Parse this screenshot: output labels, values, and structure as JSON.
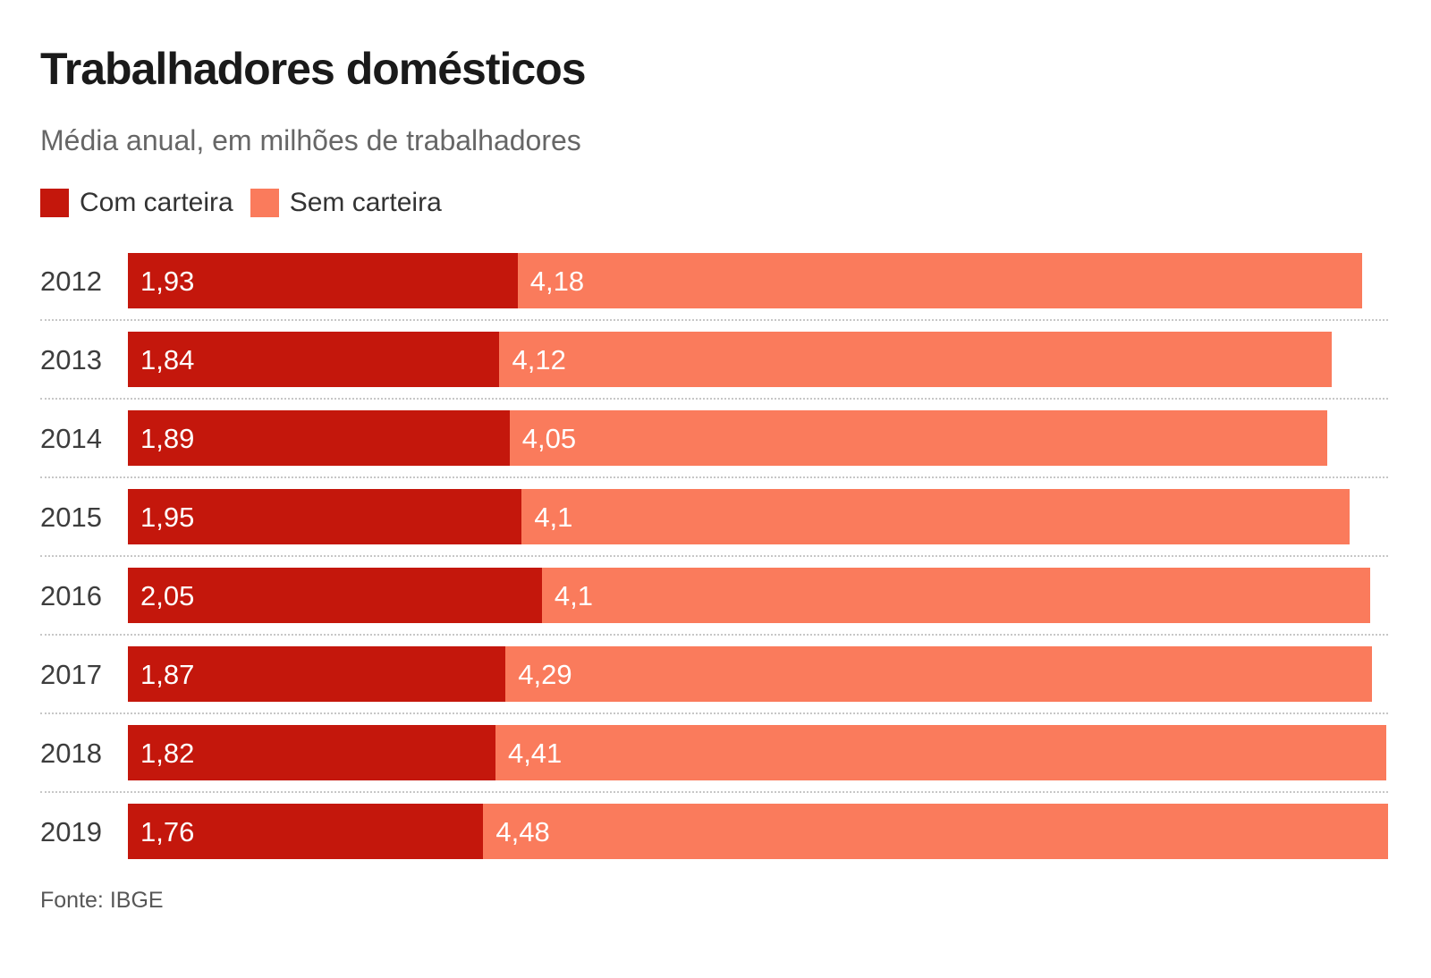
{
  "page": {
    "title": "Trabalhadores domésticos",
    "subtitle": "Média anual, em milhões de trabalhadores",
    "source": "Fonte: IBGE"
  },
  "chart_data": {
    "type": "bar",
    "orientation": "horizontal",
    "stacked": true,
    "title": "Trabalhadores domésticos",
    "subtitle": "Média anual, em milhões de trabalhadores",
    "categories": [
      "2012",
      "2013",
      "2014",
      "2015",
      "2016",
      "2017",
      "2018",
      "2019"
    ],
    "series": [
      {
        "name": "Com carteira",
        "color": "#c4170c",
        "values": [
          1.93,
          1.84,
          1.89,
          1.95,
          2.05,
          1.87,
          1.82,
          1.76
        ],
        "value_labels": [
          "1,93",
          "1,84",
          "1,89",
          "1,95",
          "2,05",
          "1,87",
          "1,82",
          "1,76"
        ]
      },
      {
        "name": "Sem carteira",
        "color": "#fa7b5c",
        "values": [
          4.18,
          4.12,
          4.05,
          4.1,
          4.1,
          4.29,
          4.41,
          4.48
        ],
        "value_labels": [
          "4,18",
          "4,12",
          "4,05",
          "4,1",
          "4,1",
          "4,29",
          "4,41",
          "4,48"
        ]
      }
    ],
    "xmax": 6.24,
    "value_label_position": "inside-start",
    "legend_position": "top-left",
    "grid": "dotted-row-separators",
    "separator_color": "#c7c7c7",
    "source": "Fonte: IBGE"
  }
}
